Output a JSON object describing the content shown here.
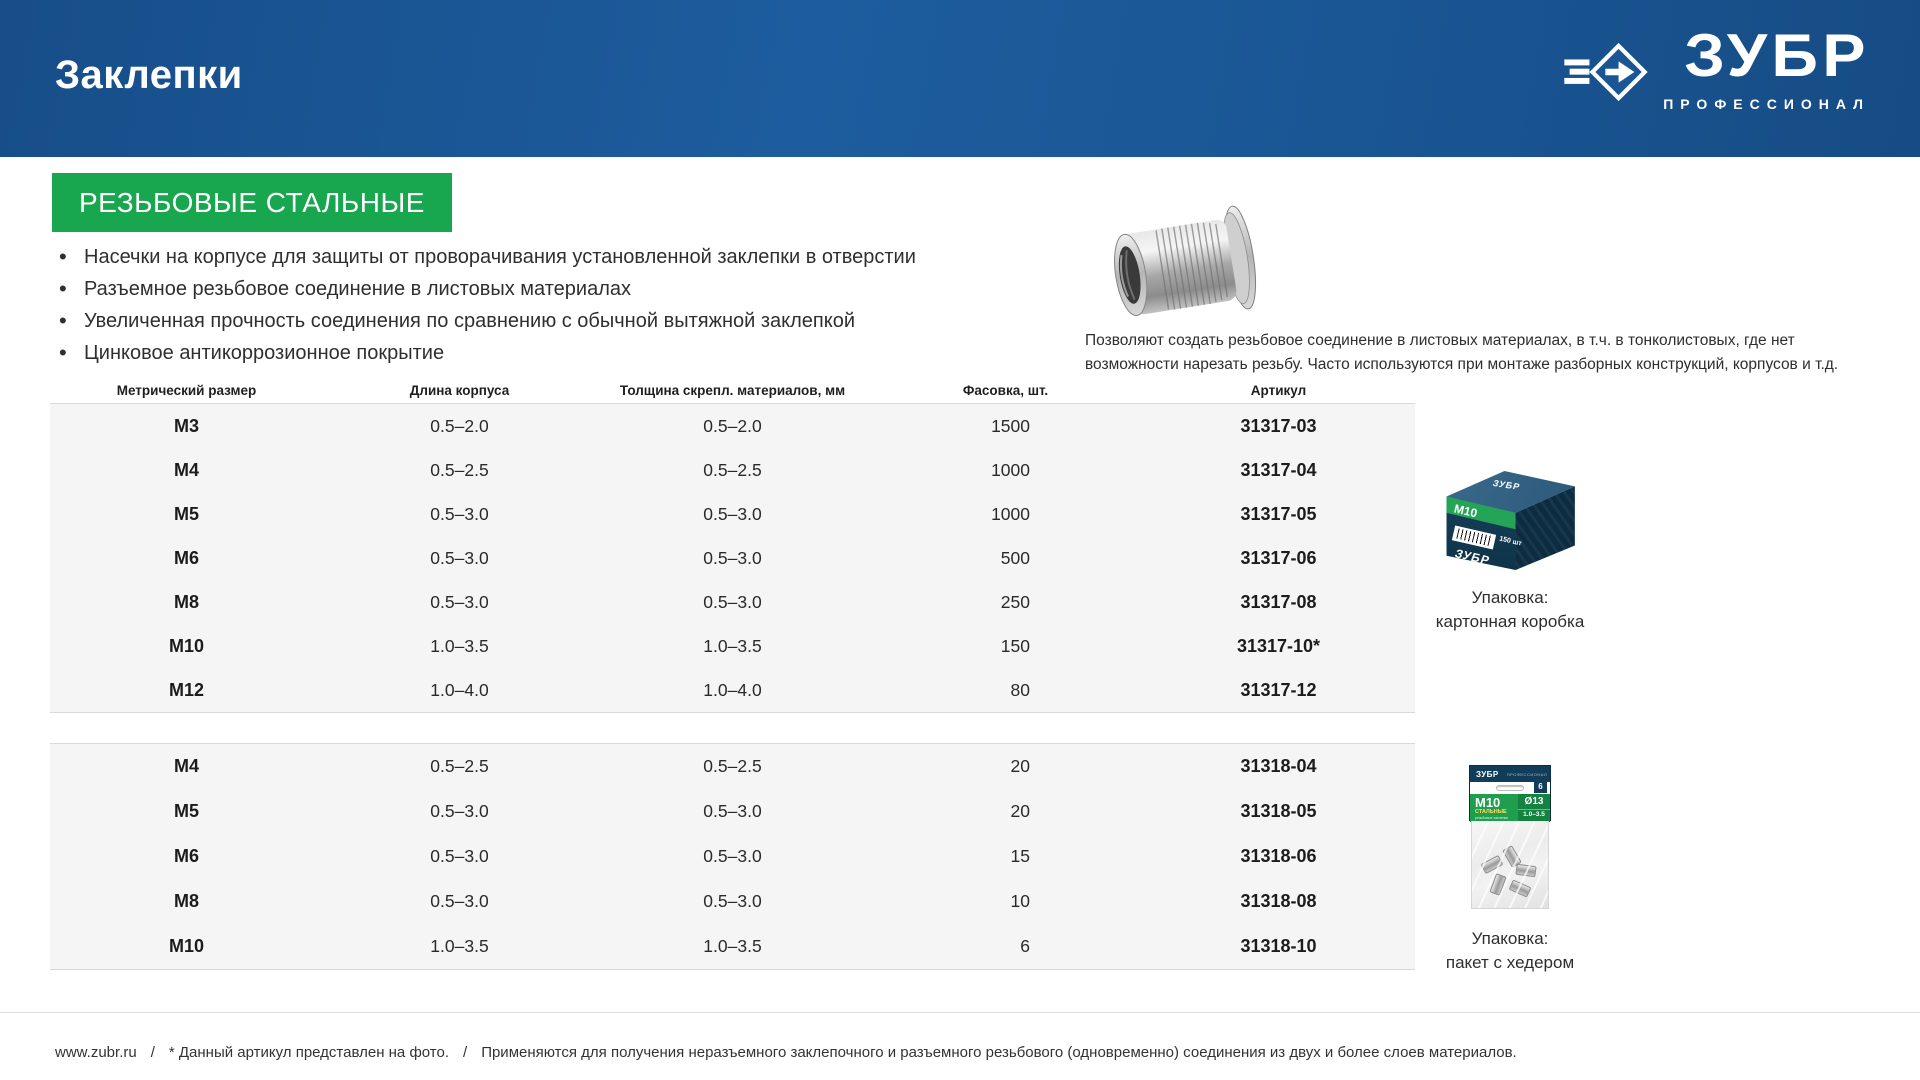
{
  "page": {
    "title": "Заклепки",
    "brand": {
      "name": "ЗУБР",
      "tagline": "ПРОФЕССИОНАЛ"
    }
  },
  "section": {
    "badge": "РЕЗЬБОВЫЕ СТАЛЬНЫЕ",
    "features": [
      "Насечки на корпусе для защиты от проворачивания установленной заклепки в отверстии",
      "Разъемное резьбовое соединение в листовых материалах",
      "Увеличенная прочность соединения по сравнению с обычной вытяжной заклепкой",
      "Цинковое антикоррозионное покрытие"
    ],
    "description_line1": "Позволяют создать резьбовое соединение в листовых материалах, в т.ч. в тонколистовых, где нет",
    "description_line2": "возможности нарезать резьбу. Часто используются при монтаже разборных конструкций, корпусов и т.д."
  },
  "table": {
    "headers": [
      "Метрический размер",
      "Длина корпуса",
      "Толщина скрепл. материалов, мм",
      "Фасовка, шт.",
      "Артикул"
    ],
    "header_keys": [
      "size",
      "body-length",
      "material-thickness",
      "pack-qty",
      "article"
    ],
    "groups": [
      {
        "rows": [
          [
            "M3",
            "0.5–2.0",
            "0.5–2.0",
            "1500",
            "31317-03"
          ],
          [
            "M4",
            "0.5–2.5",
            "0.5–2.5",
            "1000",
            "31317-04"
          ],
          [
            "M5",
            "0.5–3.0",
            "0.5–3.0",
            "1000",
            "31317-05"
          ],
          [
            "M6",
            "0.5–3.0",
            "0.5–3.0",
            "500",
            "31317-06"
          ],
          [
            "M8",
            "0.5–3.0",
            "0.5–3.0",
            "250",
            "31317-08"
          ],
          [
            "M10",
            "1.0–3.5",
            "1.0–3.5",
            "150",
            "31317-10*"
          ],
          [
            "M12",
            "1.0–4.0",
            "1.0–4.0",
            "80",
            "31317-12"
          ]
        ]
      },
      {
        "rows": [
          [
            "M4",
            "0.5–2.5",
            "0.5–2.5",
            "20",
            "31318-04"
          ],
          [
            "M5",
            "0.5–3.0",
            "0.5–3.0",
            "20",
            "31318-05"
          ],
          [
            "M6",
            "0.5–3.0",
            "0.5–3.0",
            "15",
            "31318-06"
          ],
          [
            "M8",
            "0.5–3.0",
            "0.5–3.0",
            "10",
            "31318-08"
          ],
          [
            "M10",
            "1.0–3.5",
            "1.0–3.5",
            "6",
            "31318-10"
          ]
        ]
      }
    ]
  },
  "packaging": [
    {
      "caption_line1": "Упаковка:",
      "caption_line2": "картонная коробка",
      "size_label": "M10",
      "qty_label": "150 шт"
    },
    {
      "caption_line1": "Упаковка:",
      "caption_line2": "пакет с хедером",
      "size_label": "M10",
      "type_label": "СТАЛЬНЫЕ",
      "sub_label": "резьбовые заклепки",
      "diameter_label": "Ø13",
      "range_label": "1.0–3.5",
      "qty_badge": "6"
    }
  ],
  "footer": {
    "url": "www.zubr.ru",
    "sep": "/",
    "note1": "* Данный артикул представлен на фото.",
    "note2": "Применяются для получения неразъемного заклепочного и разъемного резьбового (одновременно) соединения из двух и более слоев материалов."
  }
}
